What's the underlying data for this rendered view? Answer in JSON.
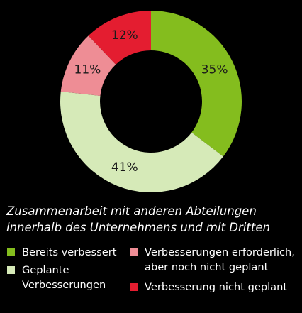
{
  "chart_data": {
    "type": "donut",
    "title": "Zusammenarbeit mit anderen Abteilungen innerhalb des Unternehmens und mit Dritten",
    "slices": [
      {
        "name": "Bereits verbessert",
        "value": 35,
        "label": "35%",
        "color": "#84bd1e"
      },
      {
        "name": "Geplante Verbesserungen",
        "value": 41,
        "label": "41%",
        "color": "#d6eab8"
      },
      {
        "name": "Verbesserungen erforderlich, aber noch nicht geplant",
        "value": 11,
        "label": "11%",
        "color": "#ee8d95"
      },
      {
        "name": "Verbesserung nicht geplant",
        "value": 12,
        "label": "12%",
        "color": "#e41d30"
      }
    ],
    "start_angle_deg": 0,
    "direction": "clockwise"
  },
  "caption": {
    "line1": "Zusammenarbeit mit anderen Abteilungen",
    "line2": "innerhalb des Unternehmens und mit Dritten"
  },
  "legend": {
    "bereits": {
      "line1": "Bereits verbessert"
    },
    "geplant": {
      "line1": "Geplante",
      "line2": "Verbesserungen"
    },
    "erforderlich": {
      "line1": "Verbesserungen erforderlich,",
      "line2": "aber noch nicht geplant"
    },
    "nicht": {
      "line1": "Verbesserung nicht geplant"
    }
  }
}
